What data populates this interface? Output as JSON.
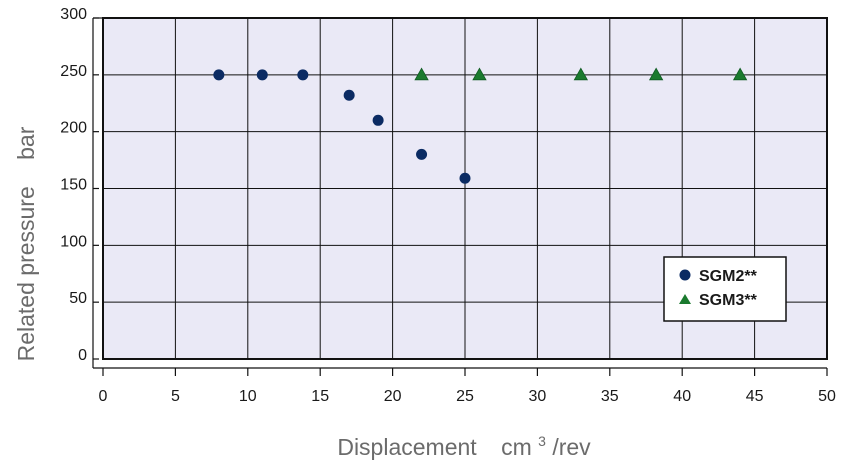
{
  "chart_data": {
    "type": "scatter",
    "title": "",
    "xlabel": "Displacement",
    "xlabel_unit_prefix": "cm",
    "xlabel_unit_sup": "3",
    "xlabel_unit_suffix": "/rev",
    "ylabel": "Related pressure",
    "ylabel_unit": "bar",
    "xlim": [
      0,
      50
    ],
    "ylim": [
      0,
      300
    ],
    "x_ticks": [
      0,
      5,
      10,
      15,
      20,
      25,
      30,
      35,
      40,
      45,
      50
    ],
    "y_ticks": [
      0,
      50,
      100,
      150,
      200,
      250,
      300
    ],
    "x_tick_labels": [
      "0",
      "5",
      "10",
      "15",
      "20",
      "25",
      "30",
      "35",
      "40",
      "45",
      "50"
    ],
    "y_tick_labels": [
      "0",
      "50",
      "100",
      "150",
      "200",
      "250",
      "300"
    ],
    "grid": true,
    "legend_position": "lower-right",
    "plot_background": "#eae9f6",
    "series": [
      {
        "name": "SGM2**",
        "marker": "circle",
        "color": "#0b2b63",
        "x": [
          8,
          11,
          13.8,
          17,
          19,
          22,
          25
        ],
        "y": [
          250,
          250,
          250,
          232,
          210,
          180,
          159
        ]
      },
      {
        "name": "SGM3**",
        "marker": "triangle",
        "color": "#1b7a2e",
        "x": [
          22,
          26,
          33,
          38.2,
          44
        ],
        "y": [
          250,
          250,
          250,
          250,
          250
        ]
      }
    ]
  }
}
